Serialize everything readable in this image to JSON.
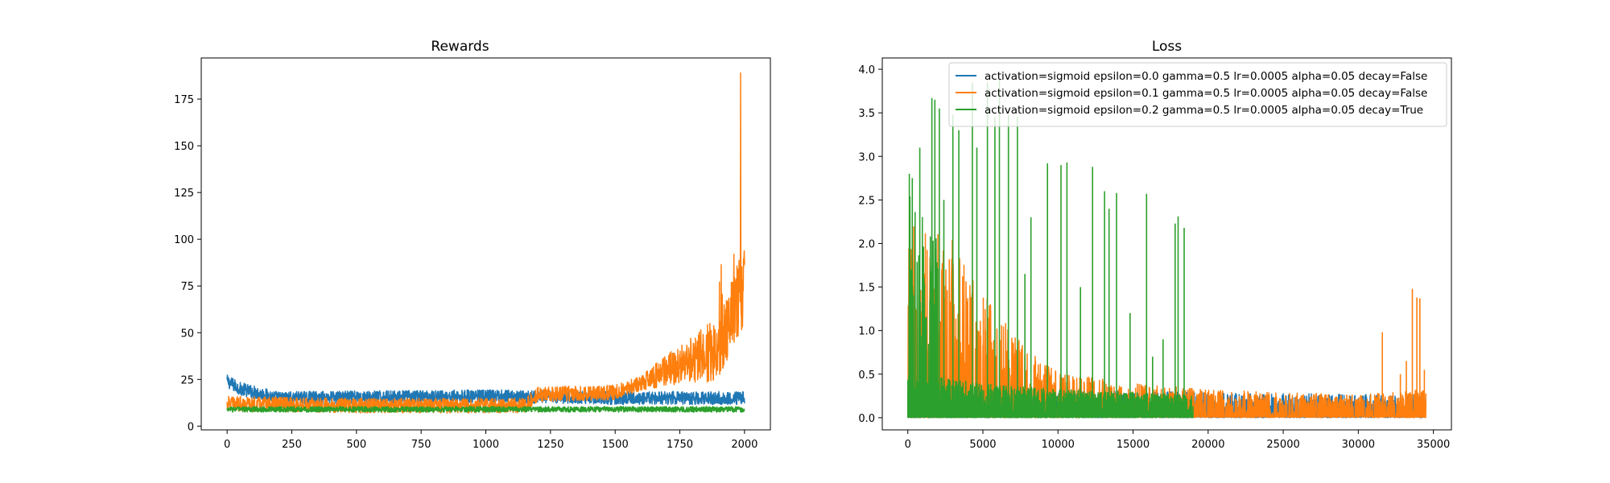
{
  "chart_data": [
    {
      "type": "line",
      "title": "Rewards",
      "xlabel": "",
      "ylabel": "",
      "xlim": [
        -100,
        2100
      ],
      "ylim": [
        -2,
        197
      ],
      "xticks": [
        0,
        250,
        500,
        750,
        1000,
        1250,
        1500,
        1750,
        2000
      ],
      "yticks": [
        0,
        25,
        50,
        75,
        100,
        125,
        150,
        175
      ],
      "grid": false,
      "legend": "none",
      "series": [
        {
          "color": "#1f77b4",
          "x_range": [
            0,
            2000
          ],
          "points": [
            [
              0,
              24
            ],
            [
              50,
              20
            ],
            [
              200,
              15
            ],
            [
              1000,
              16
            ],
            [
              1500,
              15
            ],
            [
              2000,
              15
            ]
          ],
          "band": 3.5
        },
        {
          "color": "#ff7f0e",
          "x_range": [
            0,
            2000
          ],
          "points": [
            [
              0,
              12
            ],
            [
              500,
              11
            ],
            [
              1150,
              11
            ],
            [
              1200,
              17
            ],
            [
              1500,
              18
            ],
            [
              1600,
              23
            ],
            [
              1700,
              30
            ],
            [
              1800,
              35
            ],
            [
              1900,
              42
            ],
            [
              1950,
              60
            ],
            [
              2000,
              75
            ]
          ],
          "band": 4,
          "peak_x": 1985,
          "peak_y": 189
        },
        {
          "color": "#2ca02c",
          "x_range": [
            0,
            2000
          ],
          "points": [
            [
              0,
              9
            ],
            [
              2000,
              9
            ]
          ],
          "band": 1.5
        }
      ]
    },
    {
      "type": "line",
      "title": "Loss",
      "xlabel": "",
      "ylabel": "",
      "xlim": [
        -1700,
        36200
      ],
      "ylim": [
        -0.14,
        4.13
      ],
      "xticks": [
        0,
        5000,
        10000,
        15000,
        20000,
        25000,
        30000,
        35000
      ],
      "yticks": [
        0.0,
        0.5,
        1.0,
        1.5,
        2.0,
        2.5,
        3.0,
        3.5,
        4.0
      ],
      "grid": false,
      "legend": "upper right",
      "series": [
        {
          "name": "activation=sigmoid epsilon=0.0 gamma=0.5 lr=0.0005 alpha=0.05 decay=False",
          "color": "#1f77b4",
          "x_range": [
            0,
            34500
          ],
          "points": [
            [
              0,
              0.25
            ],
            [
              10000,
              0.25
            ],
            [
              20000,
              0.22
            ],
            [
              34500,
              0.2
            ]
          ]
        },
        {
          "name": "activation=sigmoid epsilon=0.1 gamma=0.5 lr=0.0005 alpha=0.05 decay=False",
          "color": "#ff7f0e",
          "x_range": [
            0,
            34500
          ],
          "points": [
            [
              0,
              1.7
            ],
            [
              3000,
              1.6
            ],
            [
              5000,
              1.1
            ],
            [
              8000,
              0.6
            ],
            [
              10000,
              0.4
            ],
            [
              15000,
              0.3
            ],
            [
              20000,
              0.25
            ],
            [
              30000,
              0.2
            ],
            [
              34500,
              0.25
            ]
          ],
          "spikes": [
            [
              31600,
              0.98
            ],
            [
              32800,
              0.5
            ],
            [
              33200,
              0.65
            ],
            [
              33600,
              1.48
            ],
            [
              33900,
              1.38
            ],
            [
              34100,
              1.37
            ],
            [
              34400,
              0.55
            ]
          ]
        },
        {
          "name": "activation=sigmoid epsilon=0.2 gamma=0.5 lr=0.0005 alpha=0.05 decay=True",
          "color": "#2ca02c",
          "x_range": [
            0,
            19000
          ],
          "points": [
            [
              0,
              0.4
            ],
            [
              5000,
              0.3
            ],
            [
              10000,
              0.25
            ],
            [
              19000,
              0.2
            ]
          ],
          "spikes": [
            [
              100,
              2.8
            ],
            [
              300,
              2.75
            ],
            [
              800,
              3.1
            ],
            [
              1600,
              3.67
            ],
            [
              1800,
              3.65
            ],
            [
              2100,
              3.55
            ],
            [
              2400,
              2.5
            ],
            [
              3000,
              3.48
            ],
            [
              3400,
              3.3
            ],
            [
              4300,
              3.85
            ],
            [
              4600,
              3.1
            ],
            [
              5300,
              3.85
            ],
            [
              5800,
              3.45
            ],
            [
              6100,
              3.9
            ],
            [
              6700,
              3.48
            ],
            [
              7300,
              3.45
            ],
            [
              8200,
              2.3
            ],
            [
              9300,
              2.92
            ],
            [
              10200,
              2.9
            ],
            [
              10600,
              2.93
            ],
            [
              12300,
              2.88
            ],
            [
              13100,
              2.6
            ],
            [
              13400,
              2.4
            ],
            [
              13900,
              2.58
            ],
            [
              15900,
              2.57
            ],
            [
              17800,
              2.23
            ],
            [
              18000,
              2.31
            ],
            [
              18400,
              2.18
            ],
            [
              7800,
              1.65
            ],
            [
              11500,
              1.5
            ],
            [
              14800,
              1.2
            ],
            [
              16300,
              0.7
            ],
            [
              17000,
              0.9
            ]
          ]
        }
      ]
    }
  ]
}
